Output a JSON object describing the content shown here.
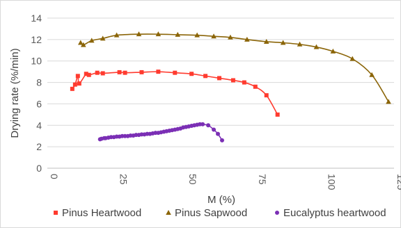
{
  "chart_data": {
    "type": "scatter",
    "title": "",
    "xlabel": "M (%)",
    "ylabel": "Drying rate (%/min)",
    "xlim": [
      0,
      125
    ],
    "ylim": [
      0,
      14
    ],
    "x_ticks": [
      "0",
      "25",
      "50",
      "75",
      "100",
      "125"
    ],
    "y_ticks": [
      "0",
      "2",
      "4",
      "6",
      "8",
      "10",
      "12",
      "14"
    ],
    "grid": "horizontal",
    "legend_position": "bottom",
    "series": [
      {
        "name": "Pinus Heartwood",
        "color": "#ff3b2f",
        "marker": "square",
        "x": [
          9,
          10,
          11,
          11.5,
          14,
          15,
          18,
          20,
          26,
          28,
          34,
          40,
          46,
          52,
          57,
          62,
          67,
          71,
          75,
          79,
          83
        ],
        "y": [
          7.4,
          7.8,
          8.6,
          7.9,
          8.8,
          8.7,
          8.9,
          8.85,
          8.95,
          8.9,
          8.95,
          9.0,
          8.9,
          8.8,
          8.6,
          8.4,
          8.2,
          8.0,
          7.6,
          6.8,
          5.0
        ]
      },
      {
        "name": "Pinus Sapwood",
        "color": "#8b6508",
        "marker": "triangle",
        "x": [
          12,
          13,
          16,
          20,
          25,
          33,
          40,
          47,
          54,
          60,
          66,
          72,
          79,
          85,
          91,
          97,
          103,
          110,
          117,
          123
        ],
        "y": [
          11.7,
          11.5,
          11.9,
          12.1,
          12.4,
          12.5,
          12.5,
          12.45,
          12.4,
          12.3,
          12.2,
          12.0,
          11.8,
          11.7,
          11.55,
          11.3,
          10.9,
          10.2,
          8.7,
          6.2
        ]
      },
      {
        "name": "Eucalyptus heartwood",
        "color": "#7b2fb5",
        "marker": "circle",
        "x": [
          19,
          19.5,
          20.5,
          21,
          22,
          23,
          24,
          25,
          26,
          27,
          28,
          29,
          30,
          31,
          32,
          33,
          34,
          35,
          36,
          37,
          38,
          39,
          40,
          41,
          42,
          43,
          44,
          45,
          46,
          47,
          48,
          49,
          50,
          51,
          52,
          53,
          54,
          55,
          56,
          58,
          60,
          61.5,
          63
        ],
        "y": [
          2.7,
          2.75,
          2.8,
          2.8,
          2.85,
          2.9,
          2.9,
          2.95,
          2.95,
          3.0,
          3.0,
          3.0,
          3.05,
          3.05,
          3.1,
          3.1,
          3.15,
          3.15,
          3.2,
          3.2,
          3.25,
          3.3,
          3.3,
          3.35,
          3.4,
          3.45,
          3.5,
          3.55,
          3.6,
          3.65,
          3.7,
          3.8,
          3.85,
          3.9,
          3.95,
          4.0,
          4.05,
          4.1,
          4.1,
          4.0,
          3.6,
          3.2,
          2.6
        ]
      }
    ]
  }
}
